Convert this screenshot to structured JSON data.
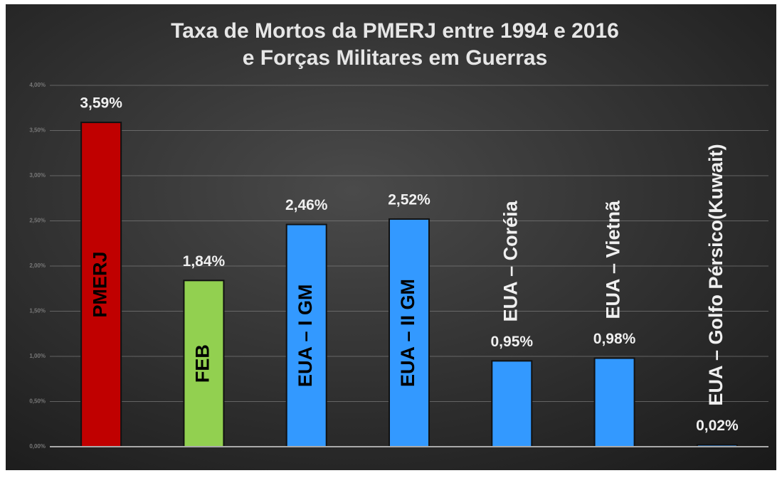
{
  "chart_data": {
    "type": "bar",
    "title": [
      "Taxa de Mortos da PMERJ entre 1994 e 2016",
      "e Forças Militares em Guerras"
    ],
    "categories": [
      "PMERJ",
      "FEB",
      "EUA – I GM",
      "EUA – II GM",
      "EUA – Coréia",
      "EUA – Vietnã",
      "EUA – Golfo Pérsico(Kuwait)"
    ],
    "values": [
      3.59,
      1.84,
      2.46,
      2.52,
      0.95,
      0.98,
      0.02
    ],
    "value_labels": [
      "3,59%",
      "1,84%",
      "2,46%",
      "2,52%",
      "0,95%",
      "0,98%",
      "0,02%"
    ],
    "colors": [
      "#c00000",
      "#92d050",
      "#3399ff",
      "#3399ff",
      "#3399ff",
      "#3399ff",
      "#3399ff"
    ],
    "ylim": [
      0,
      4
    ],
    "yticks": [
      {
        "value": 0,
        "label": "0,00%"
      },
      {
        "value": 0.5,
        "label": "0,50%"
      },
      {
        "value": 1,
        "label": "1,00%"
      },
      {
        "value": 1.5,
        "label": "1,50%"
      },
      {
        "value": 2,
        "label": "2,00%"
      },
      {
        "value": 2.5,
        "label": "2,50%"
      },
      {
        "value": 3,
        "label": "3,00%"
      },
      {
        "value": 3.5,
        "label": "3,50%"
      },
      {
        "value": 4,
        "label": "4,00%"
      }
    ],
    "grid": true
  }
}
